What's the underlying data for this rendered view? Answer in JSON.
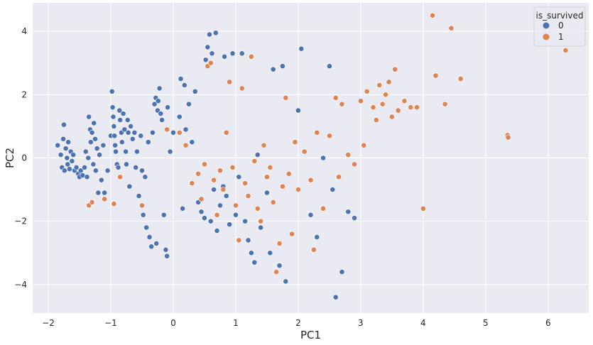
{
  "chart_data": {
    "type": "scatter",
    "title": "",
    "xlabel": "PC1",
    "ylabel": "PC2",
    "xlim": [
      -2.25,
      6.65
    ],
    "ylim": [
      -4.9,
      4.9
    ],
    "xticks": [
      -2,
      -1,
      0,
      1,
      2,
      3,
      4,
      5,
      6
    ],
    "yticks": [
      -4,
      -2,
      0,
      2,
      4
    ],
    "grid": true,
    "legend": {
      "title": "is_survived",
      "placement": "top-right"
    },
    "series": [
      {
        "name": "0",
        "color": "#4c72b0",
        "points": [
          [
            -1.85,
            0.4
          ],
          [
            -1.8,
            0.1
          ],
          [
            -1.78,
            -0.3
          ],
          [
            -1.76,
            0.6
          ],
          [
            -1.75,
            1.05
          ],
          [
            -1.74,
            -0.4
          ],
          [
            -1.72,
            0.3
          ],
          [
            -1.7,
            0.0
          ],
          [
            -1.69,
            -0.2
          ],
          [
            -1.68,
            0.5
          ],
          [
            -1.66,
            -0.35
          ],
          [
            -1.64,
            0.2
          ],
          [
            -1.62,
            -0.1
          ],
          [
            -1.6,
            0.1
          ],
          [
            -1.58,
            -0.4
          ],
          [
            -1.55,
            -0.3
          ],
          [
            -1.52,
            -0.5
          ],
          [
            -1.5,
            -0.6
          ],
          [
            -1.48,
            -0.4
          ],
          [
            -1.45,
            -0.55
          ],
          [
            -1.42,
            -0.3
          ],
          [
            -1.4,
            0.2
          ],
          [
            -1.38,
            -0.6
          ],
          [
            -1.36,
            0.0
          ],
          [
            -1.35,
            1.3
          ],
          [
            -1.33,
            0.9
          ],
          [
            -1.32,
            0.5
          ],
          [
            -1.3,
            0.8
          ],
          [
            -1.28,
            -0.2
          ],
          [
            -1.27,
            1.1
          ],
          [
            -1.25,
            0.6
          ],
          [
            -1.24,
            -0.4
          ],
          [
            -1.22,
            0.3
          ],
          [
            -1.2,
            -1.1
          ],
          [
            -1.18,
            0.1
          ],
          [
            -1.15,
            -0.7
          ],
          [
            -1.12,
            0.4
          ],
          [
            -1.1,
            -1.1
          ],
          [
            -1.05,
            -0.4
          ],
          [
            -1.0,
            0.7
          ],
          [
            -0.98,
            2.1
          ],
          [
            -0.97,
            1.6
          ],
          [
            -0.96,
            1.3
          ],
          [
            -0.95,
            1.0
          ],
          [
            -0.94,
            0.7
          ],
          [
            -0.93,
            0.4
          ],
          [
            -0.92,
            0.2
          ],
          [
            -0.9,
            -0.2
          ],
          [
            -0.88,
            -0.3
          ],
          [
            -0.86,
            1.5
          ],
          [
            -0.85,
            1.2
          ],
          [
            -0.83,
            0.8
          ],
          [
            -0.82,
            0.5
          ],
          [
            -0.8,
            1.4
          ],
          [
            -0.78,
            0.9
          ],
          [
            -0.76,
            0.2
          ],
          [
            -0.75,
            -0.2
          ],
          [
            -0.73,
            1.2
          ],
          [
            -0.72,
            0.8
          ],
          [
            -0.7,
            -0.9
          ],
          [
            -0.68,
            1.0
          ],
          [
            -0.65,
            0.6
          ],
          [
            -0.62,
            0.8
          ],
          [
            -0.6,
            -0.3
          ],
          [
            -0.58,
            0.2
          ],
          [
            -0.55,
            -1.2
          ],
          [
            -0.52,
            0.7
          ],
          [
            -0.5,
            -0.4
          ],
          [
            -0.48,
            -1.8
          ],
          [
            -0.45,
            -0.6
          ],
          [
            -0.43,
            -2.2
          ],
          [
            -0.4,
            0.5
          ],
          [
            -0.38,
            -2.5
          ],
          [
            -0.35,
            -2.8
          ],
          [
            -0.33,
            0.8
          ],
          [
            -0.3,
            1.7
          ],
          [
            -0.28,
            1.9
          ],
          [
            -0.27,
            -2.7
          ],
          [
            -0.25,
            1.5
          ],
          [
            -0.24,
            1.8
          ],
          [
            -0.22,
            2.2
          ],
          [
            -0.2,
            1.4
          ],
          [
            -0.18,
            1.2
          ],
          [
            -0.15,
            -1.8
          ],
          [
            -0.12,
            -2.9
          ],
          [
            -0.1,
            -3.1
          ],
          [
            -0.09,
            1.6
          ],
          [
            -0.05,
            0.2
          ],
          [
            0.0,
            0.8
          ],
          [
            0.1,
            1.3
          ],
          [
            0.12,
            2.5
          ],
          [
            0.15,
            -1.6
          ],
          [
            0.18,
            2.3
          ],
          [
            0.2,
            0.9
          ],
          [
            0.25,
            1.7
          ],
          [
            0.3,
            0.5
          ],
          [
            0.35,
            2.1
          ],
          [
            0.4,
            -1.4
          ],
          [
            0.45,
            -1.7
          ],
          [
            0.5,
            -1.9
          ],
          [
            0.52,
            3.1
          ],
          [
            0.55,
            3.5
          ],
          [
            0.58,
            3.9
          ],
          [
            0.6,
            -2.0
          ],
          [
            0.62,
            3.3
          ],
          [
            0.65,
            -1.0
          ],
          [
            0.68,
            3.95
          ],
          [
            0.7,
            -2.3
          ],
          [
            0.75,
            -1.5
          ],
          [
            0.8,
            -0.9
          ],
          [
            0.82,
            3.2
          ],
          [
            0.85,
            -1.2
          ],
          [
            0.9,
            -2.1
          ],
          [
            0.95,
            3.3
          ],
          [
            1.0,
            -1.8
          ],
          [
            1.05,
            -0.6
          ],
          [
            1.1,
            3.3
          ],
          [
            1.15,
            -2.0
          ],
          [
            1.2,
            -2.6
          ],
          [
            1.25,
            -3.0
          ],
          [
            1.3,
            -3.3
          ],
          [
            1.35,
            0.1
          ],
          [
            1.4,
            -2.2
          ],
          [
            1.5,
            -1.1
          ],
          [
            1.55,
            -3.0
          ],
          [
            1.6,
            2.8
          ],
          [
            1.7,
            -3.4
          ],
          [
            1.75,
            2.9
          ],
          [
            1.8,
            -3.9
          ],
          [
            2.0,
            1.5
          ],
          [
            2.05,
            3.45
          ],
          [
            2.2,
            -1.8
          ],
          [
            2.3,
            -2.5
          ],
          [
            2.4,
            0.0
          ],
          [
            2.5,
            2.9
          ],
          [
            2.55,
            -1.0
          ],
          [
            2.6,
            -4.4
          ],
          [
            2.7,
            -3.6
          ],
          [
            2.8,
            -1.7
          ],
          [
            2.9,
            -1.9
          ]
        ]
      },
      {
        "name": "1",
        "color": "#dd8452",
        "points": [
          [
            -1.35,
            -1.5
          ],
          [
            -1.3,
            -1.4
          ],
          [
            -1.1,
            -1.3
          ],
          [
            -0.95,
            -1.45
          ],
          [
            -0.85,
            -0.6
          ],
          [
            -0.5,
            -1.5
          ],
          [
            -0.1,
            0.9
          ],
          [
            0.1,
            0.8
          ],
          [
            0.2,
            0.4
          ],
          [
            0.3,
            -0.8
          ],
          [
            0.4,
            -0.5
          ],
          [
            0.45,
            -1.3
          ],
          [
            0.5,
            -0.2
          ],
          [
            0.55,
            2.9
          ],
          [
            0.6,
            3.0
          ],
          [
            0.65,
            -0.7
          ],
          [
            0.7,
            -1.8
          ],
          [
            0.75,
            -0.4
          ],
          [
            0.8,
            -1.0
          ],
          [
            0.85,
            0.8
          ],
          [
            0.9,
            2.4
          ],
          [
            0.95,
            -0.3
          ],
          [
            1.0,
            -1.5
          ],
          [
            1.05,
            -2.6
          ],
          [
            1.1,
            2.2
          ],
          [
            1.15,
            -0.8
          ],
          [
            1.2,
            -1.2
          ],
          [
            1.25,
            3.2
          ],
          [
            1.3,
            -0.1
          ],
          [
            1.35,
            -1.6
          ],
          [
            1.4,
            -2.0
          ],
          [
            1.45,
            0.4
          ],
          [
            1.5,
            -0.6
          ],
          [
            1.55,
            -0.3
          ],
          [
            1.6,
            -1.4
          ],
          [
            1.65,
            -3.6
          ],
          [
            1.7,
            -2.7
          ],
          [
            1.75,
            -0.9
          ],
          [
            1.8,
            1.9
          ],
          [
            1.85,
            -0.5
          ],
          [
            1.9,
            -2.4
          ],
          [
            1.95,
            0.5
          ],
          [
            2.0,
            -1.0
          ],
          [
            2.1,
            0.2
          ],
          [
            2.2,
            -0.7
          ],
          [
            2.25,
            -2.9
          ],
          [
            2.3,
            0.8
          ],
          [
            2.4,
            -1.6
          ],
          [
            2.5,
            0.7
          ],
          [
            2.6,
            1.9
          ],
          [
            2.65,
            -0.6
          ],
          [
            2.7,
            1.7
          ],
          [
            2.8,
            0.1
          ],
          [
            2.9,
            -0.2
          ],
          [
            3.0,
            1.8
          ],
          [
            3.05,
            0.4
          ],
          [
            3.1,
            2.1
          ],
          [
            3.2,
            1.6
          ],
          [
            3.25,
            1.2
          ],
          [
            3.3,
            2.3
          ],
          [
            3.35,
            1.7
          ],
          [
            3.4,
            2.0
          ],
          [
            3.45,
            2.4
          ],
          [
            3.5,
            1.3
          ],
          [
            3.55,
            2.8
          ],
          [
            3.6,
            1.5
          ],
          [
            3.7,
            1.8
          ],
          [
            3.8,
            1.6
          ],
          [
            3.9,
            1.6
          ],
          [
            4.0,
            -1.6
          ],
          [
            4.15,
            4.5
          ],
          [
            4.2,
            2.6
          ],
          [
            4.35,
            1.7
          ],
          [
            4.45,
            4.1
          ],
          [
            4.6,
            2.5
          ],
          [
            5.35,
            0.72
          ],
          [
            5.36,
            0.65
          ],
          [
            6.28,
            3.4
          ]
        ]
      }
    ]
  }
}
